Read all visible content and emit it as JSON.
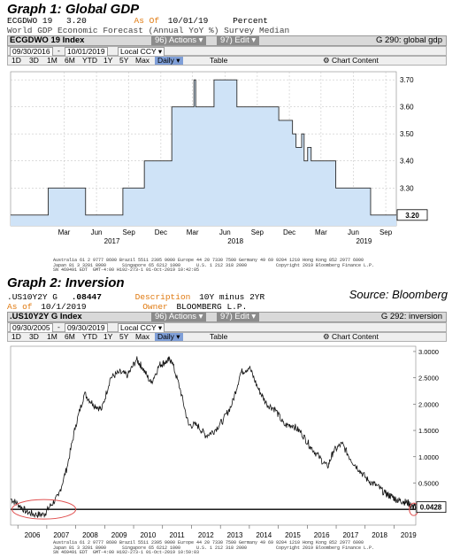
{
  "graph1": {
    "heading": "Graph 1: Global GDP",
    "info": {
      "ticker": "ECGDWO 19",
      "value": "3.20",
      "asof_label": "As Of",
      "asof": "10/01/19",
      "unit": "Percent",
      "desc": "World GDP Economic Forecast (Annual YoY %) Survey Median"
    },
    "bar": {
      "index_label": "ECGDWO 19 Index",
      "actions_num": "96)",
      "actions": "Actions",
      "edit_num": "97)",
      "edit": "Edit",
      "right": "G 290: global gdp"
    },
    "ctrl": {
      "start": "09/30/2016",
      "end": "10/01/2019",
      "currency": "Local CCY",
      "periods": [
        "1D",
        "3D",
        "1M",
        "6M",
        "YTD",
        "1Y",
        "5Y",
        "Max"
      ],
      "frequency": "Daily",
      "table": "Table",
      "chart_content": "Chart Content"
    },
    "footer1": "Australia 61 2 9777 8600 Brazil 5511 2395 9000 Europe 44 20 7330 7500 Germany 49 69 9204 1210 Hong Kong 852 2977 6000",
    "footer2": "Japan 81 3 3201 8900      Singapore 65 6212 1000      U.S. 1 212 318 2000           Copyright 2019 Bloomberg Finance L.P.",
    "footer3": "SN 469491 EDT  GMT-4:00 H192-273-1 01-Oct-2019 10:42:05"
  },
  "graph2": {
    "heading": "Graph 2: Inversion",
    "source": "Source: Bloomberg",
    "info": {
      "ticker": ".US10Y2Y G",
      "value": ".08447",
      "desc_label": "Description",
      "desc": "10Y minus 2YR",
      "asof_label": "As of",
      "asof": "10/1/2019",
      "owner_label": "Owner",
      "owner": "BLOOMBERG L.P."
    },
    "bar": {
      "index_label": ".US10Y2Y G Index",
      "actions_num": "96)",
      "actions": "Actions",
      "edit_num": "97)",
      "edit": "Edit",
      "right": "G 292: inversion"
    },
    "ctrl": {
      "start": "09/30/2005",
      "end": "09/30/2019",
      "currency": "Local CCY",
      "periods": [
        "1D",
        "3D",
        "1M",
        "6M",
        "YTD",
        "1Y",
        "5Y",
        "Max"
      ],
      "frequency": "Daily",
      "table": "Table",
      "chart_content": "Chart Content"
    },
    "footer1": "Australia 61 2 9777 8600 Brazil 5511 2395 9000 Europe 44 20 7330 7500 Germany 49 69 9204 1210 Hong Kong 852 2977 6000",
    "footer2": "Japan 81 3 3201 8900      Singapore 65 6212 1000      U.S. 1 212 318 2000           Copyright 2019 Bloomberg Finance L.P.",
    "footer3": "SN 469491 EDT  GMT-4:00 H192-273-1 01-Oct-2019 10:59:03"
  },
  "colors": {
    "area_fill": "#cfe3f7",
    "area_line": "#2a2a2a",
    "last_value_box": "#ffffff",
    "circle": "#e05050",
    "orange_label": "#e07a10"
  },
  "chart_data": [
    {
      "type": "area",
      "title": "",
      "x_tick_labels": [
        "Mar",
        "Jun",
        "Sep",
        "Dec",
        "Mar",
        "Jun",
        "Sep",
        "Dec",
        "Mar",
        "Jun",
        "Sep"
      ],
      "x_year_labels": [
        "2017",
        "2018",
        "2019"
      ],
      "y_tick_labels": [
        "3.20",
        "3.30",
        "3.40",
        "3.50",
        "3.60",
        "3.70"
      ],
      "ylim": [
        3.16,
        3.73
      ],
      "last_value": "3.20",
      "grid": true,
      "series": [
        {
          "x": [
            "2016-09-30",
            "2016-11-01",
            "2017-01-15",
            "2017-04-15",
            "2017-05-01",
            "2017-07-10",
            "2017-08-15",
            "2017-09-15",
            "2017-10-15",
            "2017-12-01",
            "2018-01-01",
            "2018-02-10",
            "2018-03-05",
            "2018-03-10",
            "2018-04-15",
            "2018-05-01",
            "2018-06-05",
            "2018-07-05",
            "2018-09-01",
            "2018-10-05",
            "2018-11-01",
            "2018-12-05",
            "2018-12-10",
            "2018-12-20",
            "2019-01-05",
            "2019-01-12",
            "2019-01-22",
            "2019-02-01",
            "2019-03-01",
            "2019-03-10",
            "2019-04-01",
            "2019-04-12",
            "2019-07-01",
            "2019-07-20",
            "2019-10-01"
          ],
          "y": [
            3.2,
            3.2,
            3.3,
            3.3,
            3.2,
            3.2,
            3.3,
            3.3,
            3.4,
            3.4,
            3.6,
            3.6,
            3.7,
            3.6,
            3.6,
            3.7,
            3.7,
            3.6,
            3.6,
            3.6,
            3.55,
            3.55,
            3.5,
            3.45,
            3.5,
            3.4,
            3.45,
            3.4,
            3.4,
            3.4,
            3.4,
            3.3,
            3.3,
            3.2,
            3.2
          ]
        }
      ]
    },
    {
      "type": "line",
      "title": "",
      "x_tick_labels": [
        "2006",
        "2007",
        "2008",
        "2009",
        "2010",
        "2011",
        "2012",
        "2013",
        "2014",
        "2015",
        "2016",
        "2017",
        "2018",
        "2019"
      ],
      "y_tick_labels": [
        "0.5000",
        "1.0000",
        "1.5000",
        "2.0000",
        "2.5000",
        "3.0000"
      ],
      "ylim": [
        -0.3,
        3.1
      ],
      "last_value": "0.0428",
      "zero_line": 0,
      "grid": false,
      "series": [
        {
          "x": [
            2005.75,
            2006.0,
            2006.3,
            2006.6,
            2006.9,
            2007.1,
            2007.4,
            2007.7,
            2008.0,
            2008.3,
            2008.6,
            2008.9,
            2009.2,
            2009.5,
            2009.8,
            2010.1,
            2010.3,
            2010.6,
            2010.9,
            2011.1,
            2011.3,
            2011.6,
            2011.9,
            2012.2,
            2012.5,
            2012.8,
            2013.1,
            2013.4,
            2013.7,
            2014.0,
            2014.3,
            2014.6,
            2014.9,
            2015.2,
            2015.5,
            2015.8,
            2016.1,
            2016.4,
            2016.7,
            2016.9,
            2017.2,
            2017.5,
            2017.8,
            2018.1,
            2018.4,
            2018.7,
            2018.9,
            2019.1,
            2019.3,
            2019.5,
            2019.6,
            2019.75
          ],
          "y": [
            0.2,
            0.1,
            -0.05,
            -0.1,
            -0.1,
            0.05,
            0.25,
            0.8,
            1.6,
            2.2,
            2.0,
            1.9,
            2.5,
            2.6,
            2.55,
            2.85,
            2.7,
            2.4,
            2.75,
            2.8,
            2.85,
            2.3,
            1.6,
            1.6,
            1.4,
            1.5,
            1.7,
            2.0,
            2.6,
            2.7,
            2.3,
            2.0,
            1.9,
            1.6,
            1.6,
            1.45,
            1.2,
            1.0,
            0.8,
            1.1,
            1.25,
            0.95,
            0.75,
            0.55,
            0.45,
            0.3,
            0.25,
            0.18,
            0.15,
            0.12,
            0.05,
            0.0428
          ]
        }
      ]
    }
  ]
}
